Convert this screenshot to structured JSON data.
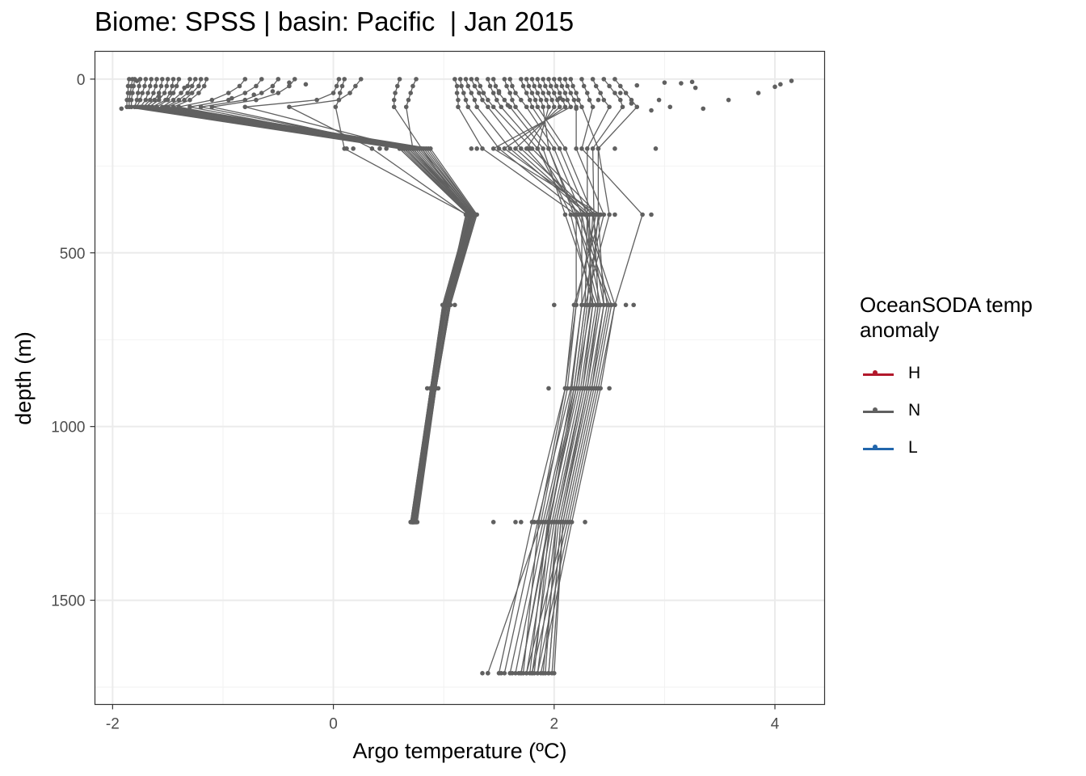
{
  "title": "Biome: SPSS | basin: Pacific  | Jan 2015",
  "legend": {
    "title": "OceanSODA temp anomaly",
    "items": [
      {
        "label": "H",
        "color": "#b2182b"
      },
      {
        "label": "N",
        "color": "#606060"
      },
      {
        "label": "L",
        "color": "#2166ac"
      }
    ]
  },
  "chart_data": {
    "type": "line",
    "xlabel": "Argo temperature (ºC)",
    "ylabel": "depth (m)",
    "xlim": [
      -2.16,
      4.45
    ],
    "ylim": [
      1800,
      -80
    ],
    "y_reversed": true,
    "xticks": [
      -2,
      0,
      2,
      4
    ],
    "yticks": [
      0,
      500,
      1000,
      1500
    ],
    "grid": true,
    "line_color": "#606060",
    "depths": [
      0,
      20,
      40,
      60,
      80,
      200,
      390,
      650,
      890,
      1275,
      1710
    ],
    "series": [
      {
        "values": [
          -1.85,
          -1.86,
          -1.86,
          -1.87,
          -1.87,
          0.6,
          1.22,
          0.99,
          0.88,
          0.7,
          null
        ]
      },
      {
        "values": [
          -1.82,
          -1.83,
          -1.84,
          -1.85,
          -1.85,
          0.62,
          1.23,
          1.0,
          0.88,
          0.71,
          null
        ]
      },
      {
        "values": [
          -1.8,
          -1.81,
          -1.82,
          -1.83,
          -1.83,
          0.64,
          1.24,
          1.0,
          0.89,
          0.71,
          null
        ]
      },
      {
        "values": [
          -1.75,
          -1.76,
          -1.77,
          -1.78,
          -1.8,
          0.66,
          1.24,
          1.01,
          0.89,
          0.72,
          null
        ]
      },
      {
        "values": [
          -1.7,
          -1.71,
          -1.73,
          -1.75,
          -1.78,
          0.68,
          1.25,
          1.01,
          0.9,
          0.72,
          null
        ]
      },
      {
        "values": [
          -1.65,
          -1.66,
          -1.68,
          -1.7,
          -1.75,
          0.7,
          1.25,
          1.02,
          0.9,
          0.73,
          null
        ]
      },
      {
        "values": [
          -1.6,
          -1.61,
          -1.63,
          -1.66,
          -1.72,
          0.72,
          1.26,
          1.02,
          0.9,
          0.73,
          null
        ]
      },
      {
        "values": [
          -1.55,
          -1.56,
          -1.58,
          -1.62,
          -1.7,
          0.74,
          1.26,
          1.03,
          0.91,
          0.73,
          null
        ]
      },
      {
        "values": [
          -1.5,
          -1.51,
          -1.53,
          -1.58,
          -1.67,
          0.76,
          1.27,
          1.03,
          0.91,
          0.74,
          null
        ]
      },
      {
        "values": [
          -1.45,
          -1.46,
          -1.48,
          -1.52,
          -1.64,
          0.78,
          1.27,
          1.04,
          0.92,
          0.74,
          null
        ]
      },
      {
        "values": [
          -1.4,
          -1.42,
          -1.45,
          -1.5,
          -1.6,
          0.8,
          1.28,
          1.04,
          0.92,
          0.74,
          null
        ]
      },
      {
        "values": [
          -1.3,
          -1.32,
          -1.38,
          -1.45,
          -1.55,
          0.82,
          1.28,
          1.05,
          0.92,
          0.75,
          null
        ]
      },
      {
        "values": [
          -1.25,
          -1.28,
          -1.32,
          -1.4,
          -1.52,
          0.84,
          1.29,
          1.05,
          0.93,
          0.75,
          null
        ]
      },
      {
        "values": [
          -1.2,
          -1.22,
          -1.28,
          -1.35,
          -1.5,
          0.86,
          1.29,
          1.06,
          0.93,
          0.75,
          null
        ]
      },
      {
        "values": [
          -1.15,
          -1.17,
          -1.22,
          -1.3,
          -1.45,
          0.88,
          1.3,
          1.06,
          0.93,
          0.76,
          null
        ]
      },
      {
        "values": [
          -0.8,
          -0.85,
          -0.95,
          -1.1,
          -1.4,
          0.6,
          1.23,
          1.0,
          0.89,
          0.71,
          null
        ]
      },
      {
        "values": [
          -0.65,
          -0.7,
          -0.8,
          -0.95,
          -1.3,
          0.64,
          1.24,
          1.01,
          0.89,
          0.72,
          null
        ]
      },
      {
        "values": [
          -0.5,
          -0.55,
          -0.65,
          -0.8,
          -1.2,
          0.7,
          1.25,
          1.02,
          0.9,
          0.72,
          null
        ]
      },
      {
        "values": [
          -0.35,
          -0.4,
          -0.5,
          -0.7,
          -1.1,
          0.66,
          1.24,
          1.01,
          0.9,
          0.72,
          null
        ]
      },
      {
        "values": [
          0.05,
          0.03,
          0.0,
          -0.15,
          -0.8,
          0.68,
          1.25,
          1.02,
          0.9,
          0.73,
          null
        ]
      },
      {
        "values": [
          0.25,
          0.2,
          0.15,
          0.05,
          -0.4,
          0.35,
          1.2,
          1.02,
          0.9,
          0.72,
          null
        ]
      },
      {
        "values": [
          0.1,
          0.08,
          0.06,
          0.05,
          0.02,
          0.1,
          1.21,
          1.01,
          0.89,
          0.72,
          null
        ]
      },
      {
        "values": [
          1.1,
          1.12,
          1.12,
          1.13,
          1.13,
          1.35,
          2.2,
          2.2,
          2.1,
          1.8,
          1.5
        ]
      },
      {
        "values": [
          1.15,
          1.16,
          1.18,
          1.2,
          1.22,
          1.5,
          2.25,
          2.25,
          2.15,
          1.85,
          1.55
        ]
      },
      {
        "values": [
          1.2,
          1.22,
          1.25,
          1.28,
          1.3,
          1.6,
          2.3,
          2.28,
          2.18,
          1.9,
          1.6
        ]
      },
      {
        "values": [
          1.25,
          1.28,
          1.32,
          1.35,
          1.4,
          1.7,
          2.35,
          2.3,
          2.2,
          1.92,
          1.65
        ]
      },
      {
        "values": [
          1.3,
          1.33,
          1.36,
          1.4,
          1.45,
          1.8,
          2.4,
          2.32,
          2.22,
          1.95,
          1.7
        ]
      },
      {
        "values": [
          1.4,
          1.42,
          1.45,
          1.48,
          1.52,
          1.85,
          2.15,
          2.35,
          2.24,
          1.98,
          1.75
        ]
      },
      {
        "values": [
          1.45,
          1.47,
          1.5,
          1.55,
          1.6,
          1.9,
          2.1,
          2.38,
          2.26,
          2.0,
          1.8
        ]
      },
      {
        "values": [
          1.55,
          1.57,
          1.6,
          1.62,
          1.65,
          1.95,
          2.2,
          2.4,
          2.28,
          2.02,
          1.85
        ]
      },
      {
        "values": [
          1.6,
          1.62,
          1.65,
          1.7,
          1.75,
          2.0,
          2.25,
          2.42,
          2.3,
          2.04,
          1.9
        ]
      },
      {
        "values": [
          1.7,
          1.72,
          1.75,
          1.78,
          1.8,
          2.05,
          2.3,
          2.45,
          2.32,
          2.06,
          1.95
        ]
      },
      {
        "values": [
          1.75,
          1.77,
          1.8,
          1.83,
          1.85,
          2.1,
          2.35,
          2.48,
          2.34,
          2.08,
          2.0
        ]
      },
      {
        "values": [
          1.8,
          1.82,
          1.85,
          1.88,
          1.9,
          1.95,
          2.18,
          2.5,
          2.36,
          2.1,
          1.75
        ]
      },
      {
        "values": [
          1.85,
          1.87,
          1.9,
          1.93,
          1.95,
          1.85,
          2.22,
          2.52,
          2.38,
          2.12,
          1.8
        ]
      },
      {
        "values": [
          1.9,
          1.92,
          1.95,
          1.98,
          2.0,
          1.75,
          2.28,
          2.55,
          2.4,
          2.14,
          1.85
        ]
      },
      {
        "values": [
          1.95,
          1.97,
          2.0,
          2.03,
          2.05,
          1.65,
          2.32,
          2.33,
          2.2,
          1.96,
          1.7
        ]
      },
      {
        "values": [
          2.0,
          2.02,
          2.05,
          2.08,
          2.1,
          1.55,
          2.38,
          2.2,
          2.12,
          1.88,
          1.4
        ]
      },
      {
        "values": [
          2.05,
          2.07,
          2.1,
          2.12,
          2.15,
          1.45,
          2.42,
          2.18,
          2.1,
          1.86,
          1.72
        ]
      },
      {
        "values": [
          2.1,
          2.12,
          2.15,
          2.18,
          2.2,
          2.2,
          2.45,
          2.25,
          2.16,
          1.94,
          1.78
        ]
      },
      {
        "values": [
          2.15,
          2.17,
          2.2,
          2.22,
          2.25,
          2.4,
          2.5,
          2.28,
          2.18,
          1.96,
          1.82
        ]
      },
      {
        "values": [
          2.25,
          2.27,
          2.3,
          2.32,
          2.35,
          2.25,
          2.8,
          2.55,
          2.42,
          2.16,
          1.88
        ]
      },
      {
        "values": [
          2.35,
          2.38,
          2.42,
          2.45,
          2.5,
          2.3,
          2.3,
          2.35,
          2.26,
          2.02,
          1.92
        ]
      },
      {
        "values": [
          2.45,
          2.5,
          2.55,
          2.6,
          2.62,
          2.35,
          2.36,
          2.4,
          2.3,
          2.06,
          1.95
        ]
      },
      {
        "values": [
          2.55,
          2.6,
          2.65,
          2.7,
          2.75,
          2.4,
          2.4,
          2.45,
          2.34,
          2.08,
          1.98
        ]
      },
      {
        "values": [
          0.6,
          0.58,
          0.56,
          0.55,
          0.55,
          0.8,
          1.22,
          0.99,
          0.88,
          0.7,
          null
        ]
      },
      {
        "values": [
          0.75,
          0.72,
          0.7,
          0.68,
          0.66,
          0.72,
          1.24,
          1.0,
          0.88,
          0.71,
          null
        ]
      }
    ],
    "extra_points": [
      {
        "x": 3.85,
        "y": 40
      },
      {
        "x": 3.58,
        "y": 60
      },
      {
        "x": 3.35,
        "y": 85
      },
      {
        "x": 4.15,
        "y": 5
      },
      {
        "x": 4.05,
        "y": 15
      },
      {
        "x": 4.0,
        "y": 22
      },
      {
        "x": 3.25,
        "y": 8
      },
      {
        "x": 3.28,
        "y": 25
      },
      {
        "x": 3.15,
        "y": 12
      },
      {
        "x": 2.92,
        "y": 200
      },
      {
        "x": 2.88,
        "y": 390
      },
      {
        "x": 2.72,
        "y": 650
      },
      {
        "x": 2.65,
        "y": 650
      },
      {
        "x": 2.55,
        "y": 200
      },
      {
        "x": 2.55,
        "y": 390
      },
      {
        "x": 2.5,
        "y": 890
      },
      {
        "x": 2.4,
        "y": 890
      },
      {
        "x": 2.28,
        "y": 1275
      },
      {
        "x": 1.82,
        "y": 1275
      },
      {
        "x": 1.78,
        "y": 200
      },
      {
        "x": 1.95,
        "y": 890
      },
      {
        "x": 2.0,
        "y": 650
      },
      {
        "x": 1.25,
        "y": 200
      },
      {
        "x": 1.3,
        "y": 200
      },
      {
        "x": 1.1,
        "y": 650
      },
      {
        "x": 0.95,
        "y": 890
      },
      {
        "x": 0.85,
        "y": 890
      },
      {
        "x": 0.12,
        "y": 200
      },
      {
        "x": 0.18,
        "y": 200
      },
      {
        "x": 0.42,
        "y": 200
      },
      {
        "x": 0.48,
        "y": 200
      },
      {
        "x": 1.35,
        "y": 1710
      },
      {
        "x": 1.4,
        "y": 1710
      },
      {
        "x": 1.52,
        "y": 1710
      },
      {
        "x": 1.62,
        "y": 1710
      },
      {
        "x": 1.68,
        "y": 1710
      },
      {
        "x": 1.45,
        "y": 1275
      },
      {
        "x": 1.65,
        "y": 1275
      },
      {
        "x": 1.7,
        "y": 1275
      },
      {
        "x": 2.88,
        "y": 90
      },
      {
        "x": 2.95,
        "y": 60
      },
      {
        "x": 3.05,
        "y": 80
      },
      {
        "x": 2.7,
        "y": 70
      },
      {
        "x": 2.6,
        "y": 40
      },
      {
        "x": 3.0,
        "y": 10
      },
      {
        "x": 2.75,
        "y": 18
      },
      {
        "x": 2.4,
        "y": 60
      },
      {
        "x": 2.2,
        "y": 85
      },
      {
        "x": 2.05,
        "y": 55
      },
      {
        "x": 1.58,
        "y": 75
      },
      {
        "x": 1.5,
        "y": 35
      },
      {
        "x": -1.58,
        "y": 50
      },
      {
        "x": -1.92,
        "y": 85
      },
      {
        "x": -1.78,
        "y": 5
      },
      {
        "x": -0.25,
        "y": 15
      },
      {
        "x": -0.55,
        "y": 35
      },
      {
        "x": -0.72,
        "y": 45
      },
      {
        "x": -0.4,
        "y": 10
      },
      {
        "x": -0.92,
        "y": 55
      },
      {
        "x": -1.35,
        "y": 25
      }
    ]
  }
}
